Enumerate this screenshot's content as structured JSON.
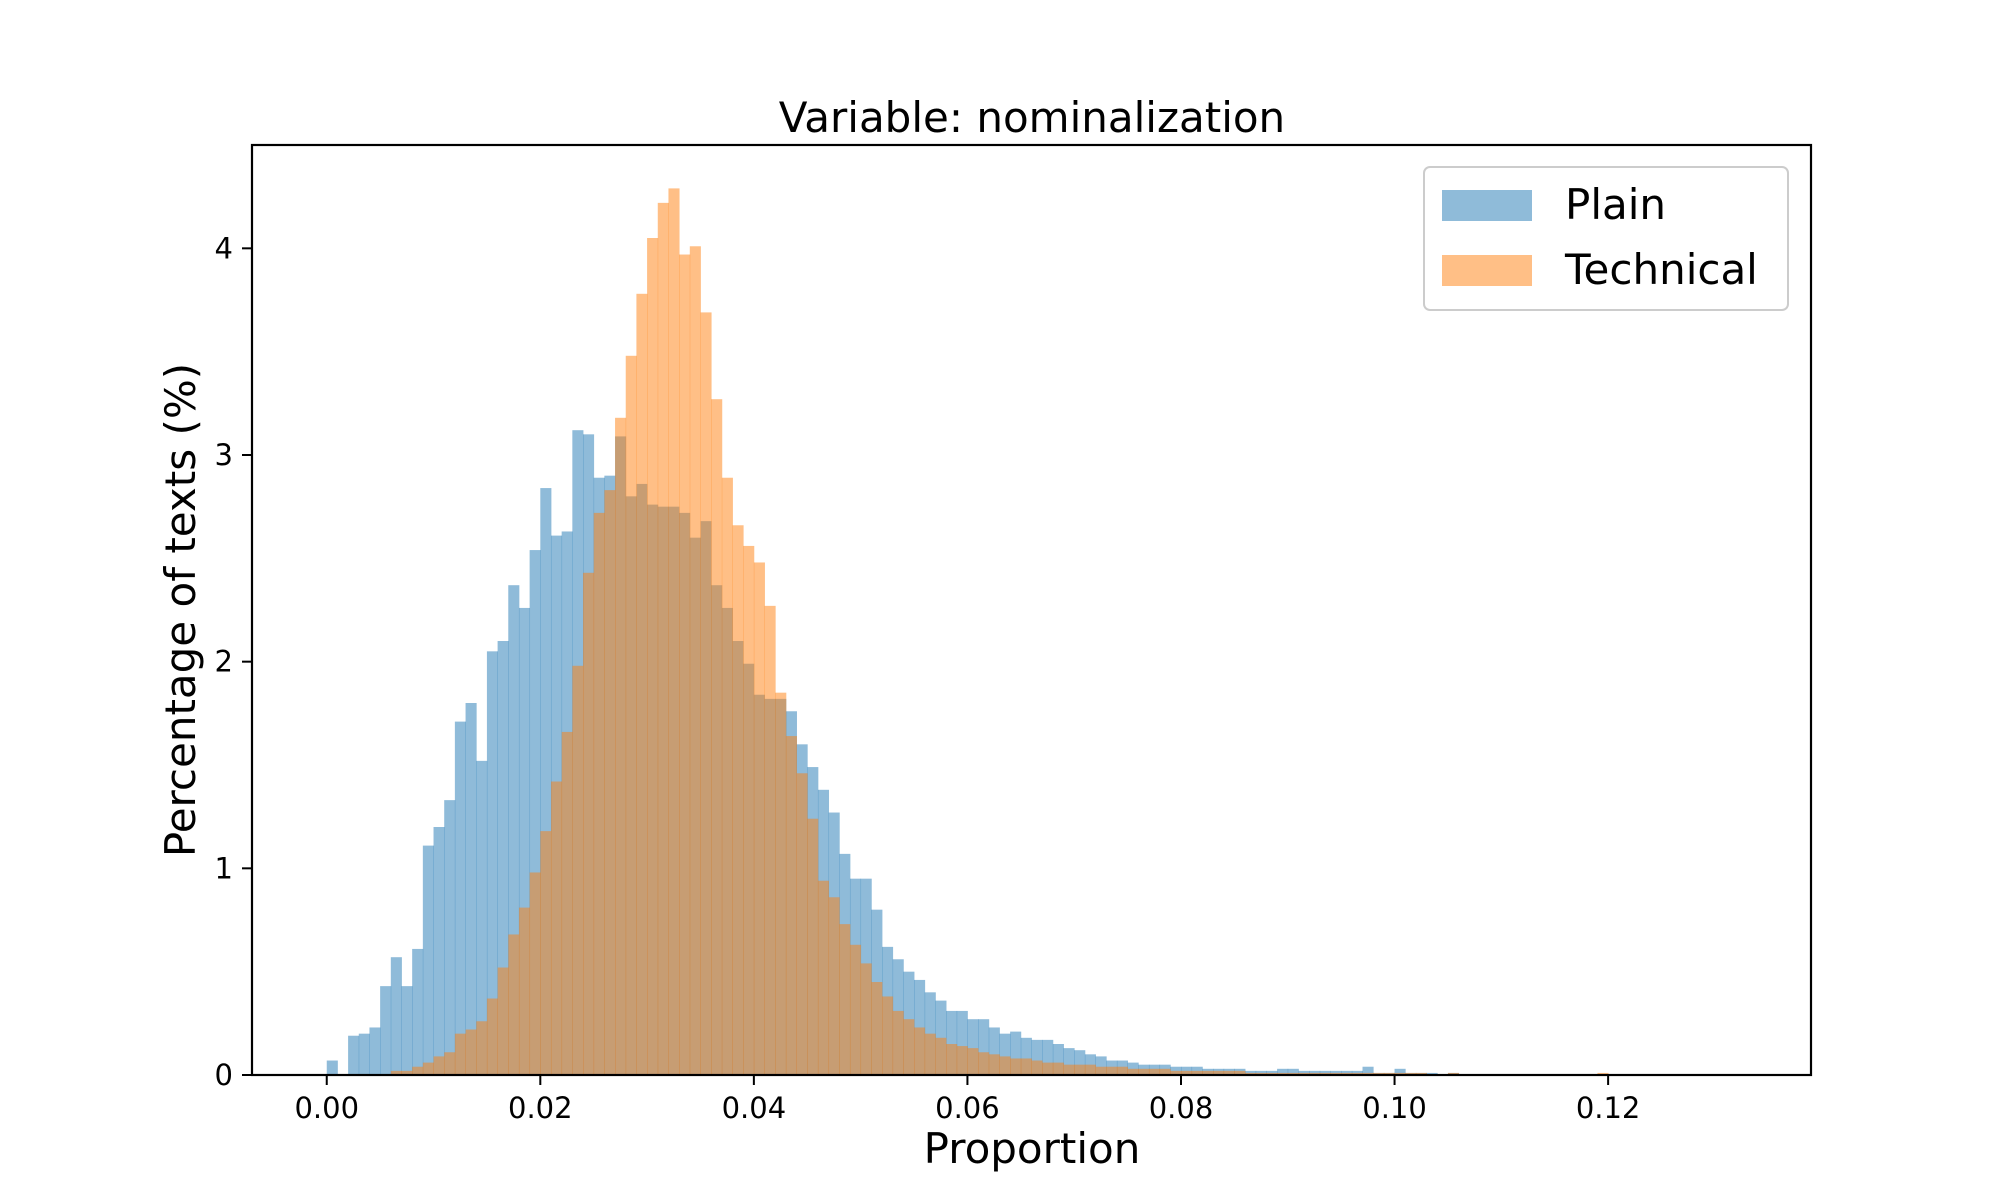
{
  "chart_data": {
    "type": "histogram",
    "title": "Variable: nominalization",
    "xlabel": "Proportion",
    "ylabel": "Percentage of texts (%)",
    "xlim": [
      -0.007,
      0.139
    ],
    "ylim": [
      0,
      4.5
    ],
    "xticks": [
      0.0,
      0.02,
      0.04,
      0.06,
      0.08,
      0.1,
      0.12
    ],
    "xtick_labels": [
      "0.00",
      "0.02",
      "0.04",
      "0.06",
      "0.08",
      "0.10",
      "0.12"
    ],
    "yticks": [
      0,
      1,
      2,
      3,
      4
    ],
    "ytick_labels": [
      "0",
      "1",
      "2",
      "3",
      "4"
    ],
    "grid": false,
    "legend_position": "top-right",
    "bin_width": 0.001,
    "series": [
      {
        "name": "Plain",
        "color": "#1f77b4",
        "opacity": 0.5,
        "bin_start": 0.0,
        "values": [
          0.07,
          0.0,
          0.19,
          0.2,
          0.23,
          0.43,
          0.57,
          0.43,
          0.61,
          1.11,
          1.2,
          1.33,
          1.71,
          1.8,
          1.52,
          2.05,
          2.1,
          2.37,
          2.26,
          2.54,
          2.84,
          2.61,
          2.63,
          3.12,
          3.1,
          2.89,
          2.9,
          3.09,
          2.8,
          2.86,
          2.76,
          2.75,
          2.75,
          2.72,
          2.6,
          2.68,
          2.37,
          2.26,
          2.1,
          1.99,
          1.84,
          1.82,
          1.82,
          1.76,
          1.6,
          1.49,
          1.38,
          1.27,
          1.07,
          0.95,
          0.95,
          0.8,
          0.62,
          0.56,
          0.5,
          0.46,
          0.4,
          0.36,
          0.31,
          0.31,
          0.27,
          0.27,
          0.23,
          0.2,
          0.21,
          0.18,
          0.17,
          0.17,
          0.15,
          0.13,
          0.12,
          0.1,
          0.09,
          0.07,
          0.07,
          0.06,
          0.05,
          0.05,
          0.05,
          0.04,
          0.04,
          0.04,
          0.03,
          0.03,
          0.03,
          0.03,
          0.02,
          0.02,
          0.02,
          0.03,
          0.03,
          0.02,
          0.02,
          0.02,
          0.02,
          0.02,
          0.02,
          0.04,
          0.01,
          0.01,
          0.03,
          0.01,
          0.01,
          0.01,
          0.0,
          0.01,
          0.0,
          0.0,
          0.0,
          0.0,
          0.0
        ]
      },
      {
        "name": "Technical",
        "color": "#ff7f0e",
        "opacity": 0.5,
        "bin_start": 0.0,
        "values": [
          0.0,
          0.0,
          0.0,
          0.0,
          0.0,
          0.0,
          0.02,
          0.02,
          0.04,
          0.06,
          0.09,
          0.11,
          0.2,
          0.22,
          0.26,
          0.37,
          0.52,
          0.68,
          0.81,
          0.98,
          1.18,
          1.42,
          1.66,
          1.98,
          2.43,
          2.72,
          2.83,
          3.18,
          3.48,
          3.78,
          4.05,
          4.22,
          4.29,
          3.97,
          4.01,
          3.69,
          3.27,
          2.89,
          2.66,
          2.56,
          2.48,
          2.27,
          1.85,
          1.64,
          1.46,
          1.24,
          0.94,
          0.86,
          0.73,
          0.63,
          0.54,
          0.45,
          0.38,
          0.31,
          0.27,
          0.23,
          0.2,
          0.18,
          0.15,
          0.14,
          0.13,
          0.11,
          0.1,
          0.09,
          0.08,
          0.08,
          0.07,
          0.06,
          0.06,
          0.05,
          0.05,
          0.05,
          0.04,
          0.04,
          0.04,
          0.03,
          0.03,
          0.03,
          0.03,
          0.02,
          0.02,
          0.02,
          0.02,
          0.02,
          0.02,
          0.02,
          0.01,
          0.01,
          0.01,
          0.01,
          0.01,
          0.01,
          0.01,
          0.01,
          0.01,
          0.01,
          0.01,
          0.01,
          0.01,
          0.01,
          0.01,
          0.01,
          0.01,
          0.0,
          0.0,
          0.01,
          0.0,
          0.0,
          0.0,
          0.0,
          0.0,
          0.0,
          0.0,
          0.0,
          0.0,
          0.0,
          0.0,
          0.0,
          0.0,
          0.01,
          0.0,
          0.0,
          0.0
        ]
      }
    ]
  }
}
